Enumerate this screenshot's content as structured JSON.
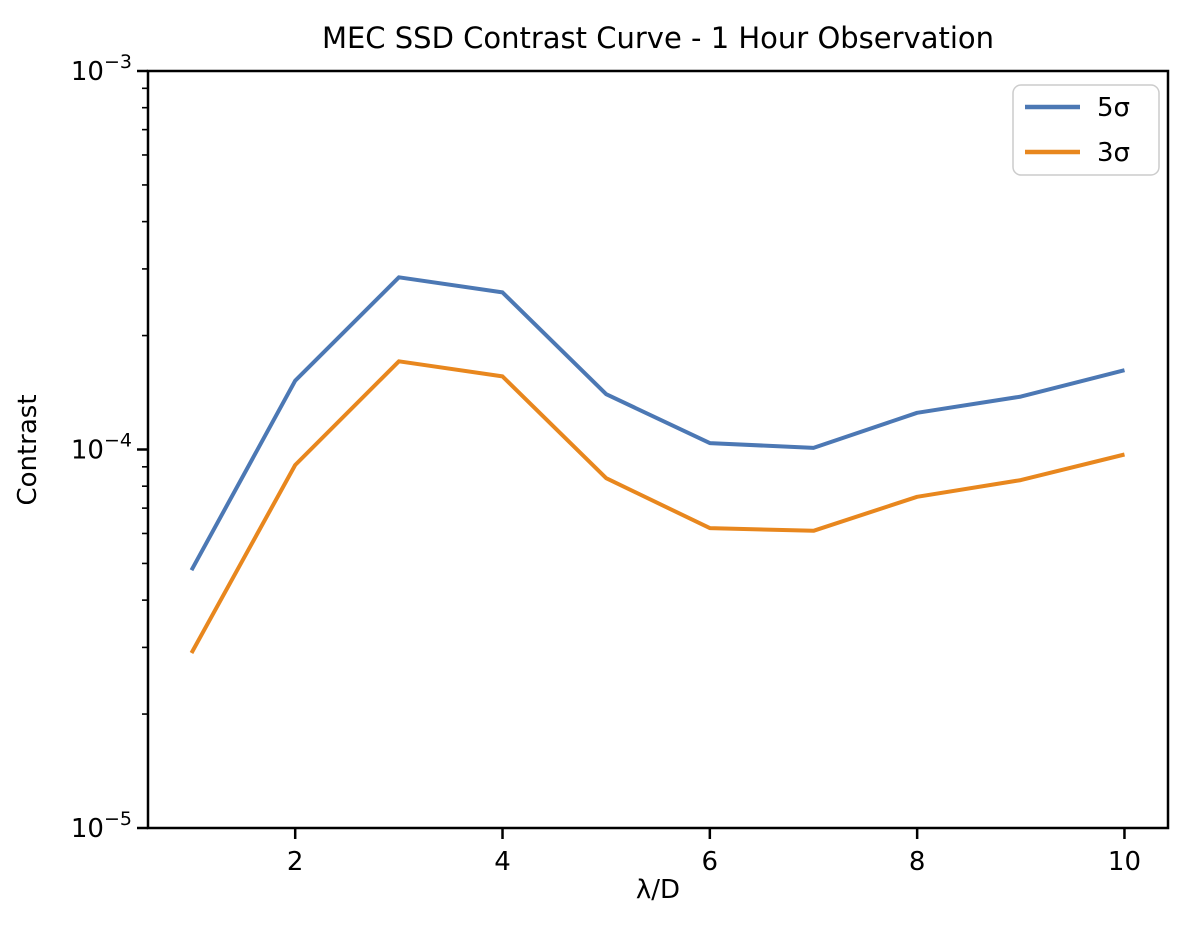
{
  "title": "MEC SSD Contrast Curve - 1 Hour Observation",
  "axes": {
    "xlabel": "λ/D",
    "ylabel": "Contrast"
  },
  "legend": {
    "entries": [
      {
        "label": "5σ",
        "color": "#4C78B4"
      },
      {
        "label": "3σ",
        "color": "#E8871E"
      }
    ]
  },
  "colors": {
    "series_blue": "#4C78B4",
    "series_orange": "#E8871E",
    "axis": "#000000",
    "legend_border": "#cccccc",
    "background": "#ffffff"
  },
  "chart_data": {
    "type": "line",
    "title": "MEC SSD Contrast Curve - 1 Hour Observation",
    "xlabel": "λ/D",
    "ylabel": "Contrast",
    "x": [
      1,
      2,
      3,
      4,
      5,
      6,
      7,
      8,
      9,
      10
    ],
    "series": [
      {
        "name": "5σ",
        "color": "#4C78B4",
        "values": [
          4.8e-05,
          0.000152,
          0.000285,
          0.00026,
          0.00014,
          0.000104,
          0.000101,
          0.000125,
          0.000138,
          0.000162
        ]
      },
      {
        "name": "3σ",
        "color": "#E8871E",
        "values": [
          2.9e-05,
          9.1e-05,
          0.000171,
          0.000156,
          8.4e-05,
          6.2e-05,
          6.1e-05,
          7.5e-05,
          8.3e-05,
          9.7e-05
        ]
      }
    ],
    "xscale": "linear",
    "yscale": "log",
    "xlim": [
      0.58,
      10.42
    ],
    "ylim": [
      1e-05,
      0.001
    ],
    "xticks": [
      2,
      4,
      6,
      8,
      10
    ],
    "ytick_exponents": [
      -3,
      -4,
      -5
    ],
    "grid": false,
    "legend_position": "upper right"
  }
}
